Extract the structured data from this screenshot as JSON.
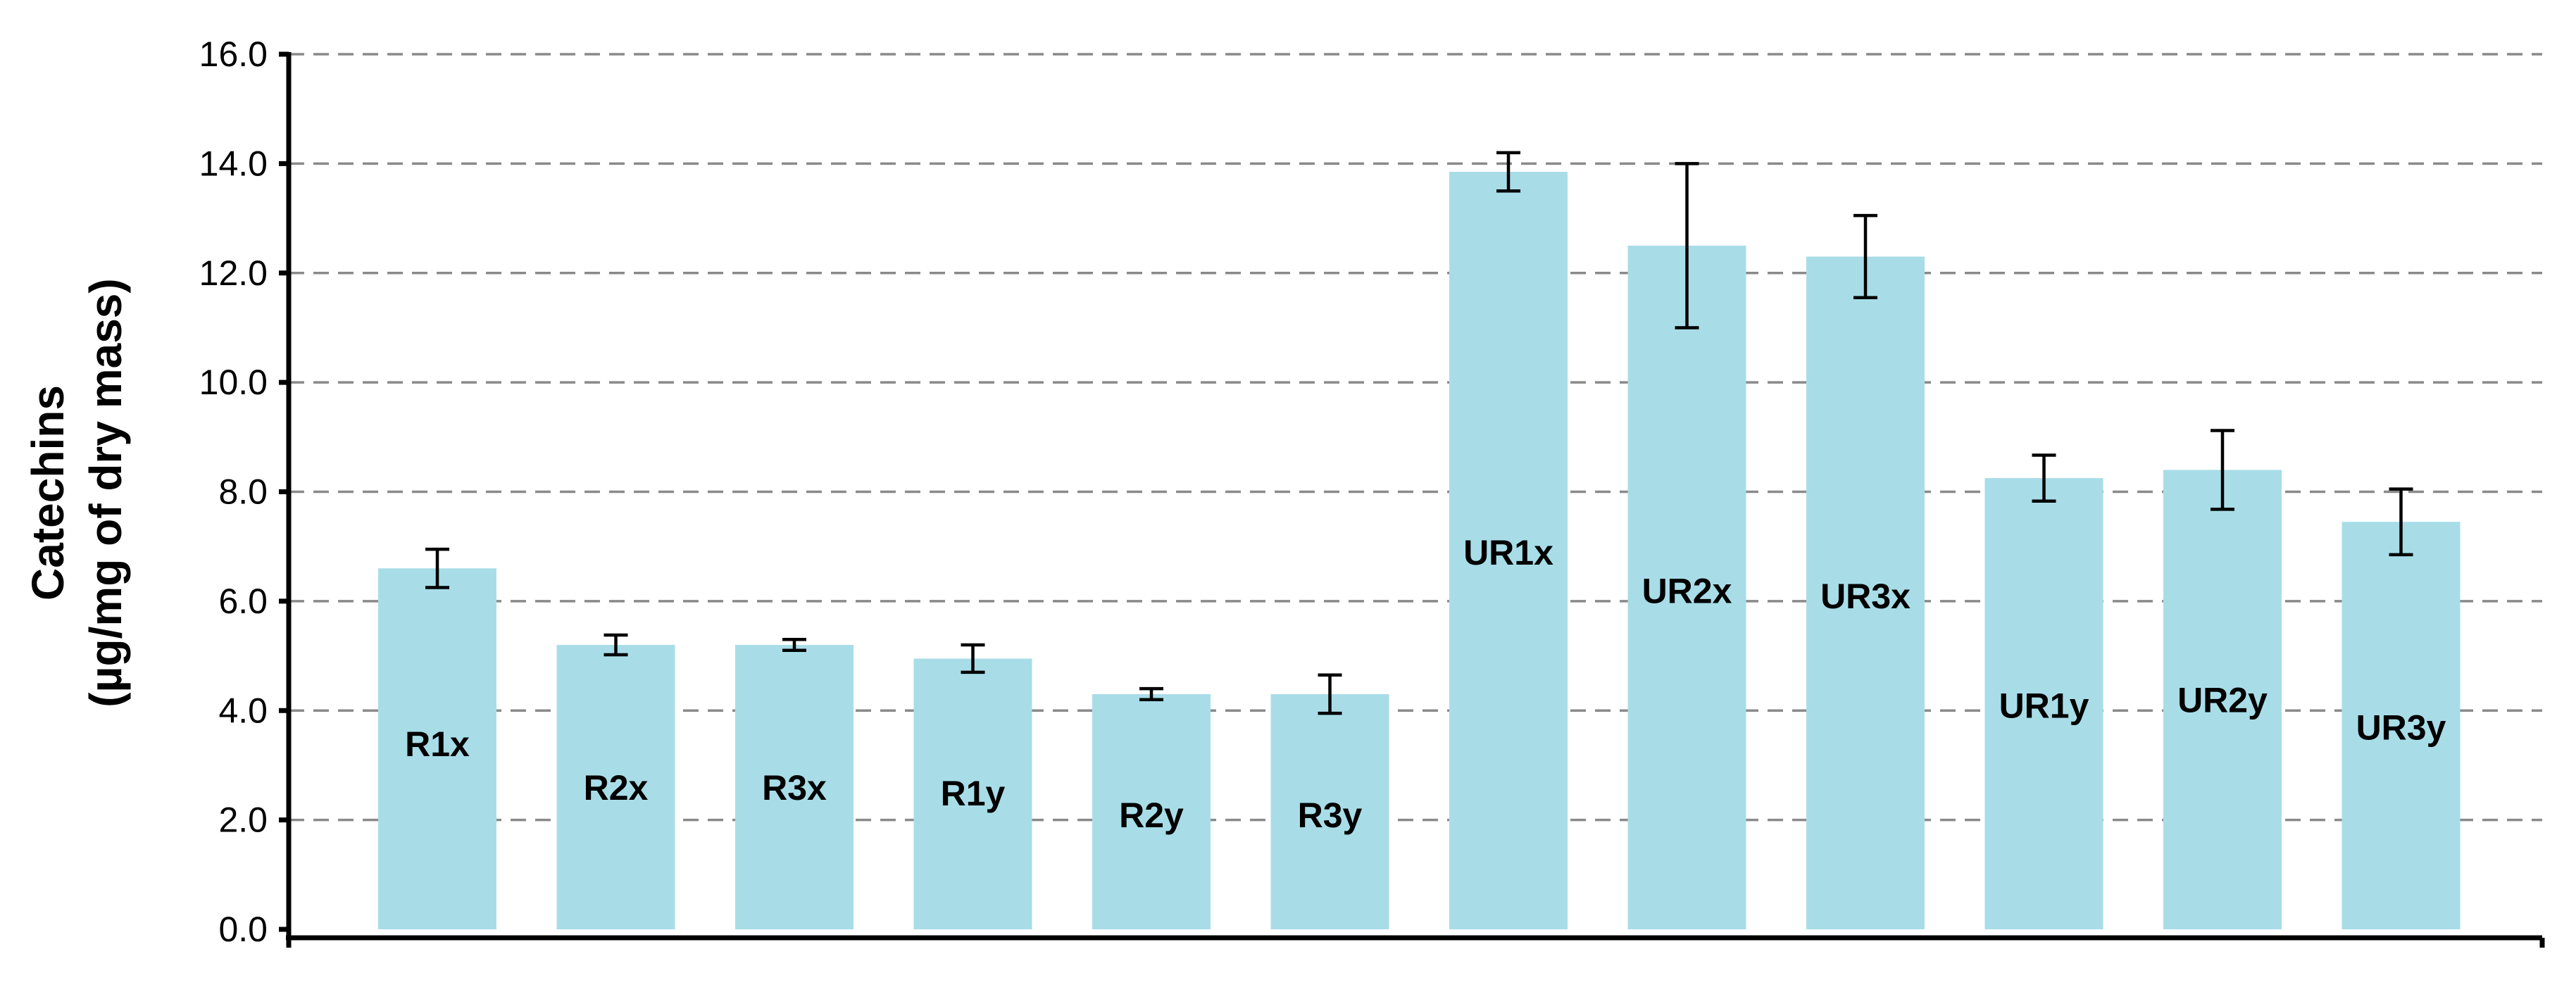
{
  "chart_data": {
    "type": "bar",
    "title": "",
    "ylabel_lines": [
      "Catechins",
      "(µg/mg of dry mass)"
    ],
    "xlabel": "",
    "ylim": [
      0,
      16
    ],
    "yticks": [
      "0.0",
      "2.0",
      "4.0",
      "6.0",
      "8.0",
      "10.0",
      "12.0",
      "14.0",
      "16.0"
    ],
    "grid": "horizontal dashed",
    "legend": "none",
    "bar_color": "#a8dde8",
    "categories": [
      "R1x",
      "R2x",
      "R3x",
      "R1y",
      "R2y",
      "R3y",
      "UR1x",
      "UR2x",
      "UR3x",
      "UR1y",
      "UR2y",
      "UR3y"
    ],
    "values": [
      6.6,
      5.2,
      5.2,
      4.95,
      4.3,
      4.3,
      13.85,
      12.5,
      12.3,
      8.25,
      8.4,
      7.45
    ],
    "errors": [
      0.35,
      0.18,
      0.1,
      0.25,
      0.1,
      0.35,
      0.35,
      1.5,
      0.75,
      0.42,
      0.72,
      0.6
    ],
    "label_values": [
      3.4,
      2.6,
      2.6,
      2.5,
      2.1,
      2.1,
      6.9,
      6.2,
      6.1,
      4.1,
      4.2,
      3.7
    ]
  }
}
